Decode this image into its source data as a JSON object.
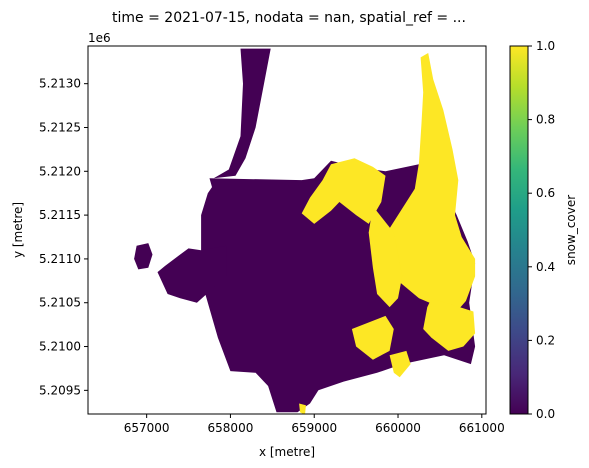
{
  "chart_data": {
    "type": "heatmap",
    "title": "time = 2021-07-15, nodata = nan, spatial_ref = ...",
    "xlabel": "x [metre]",
    "ylabel": "y [metre]",
    "y_offset_label": "1e6",
    "xlim": [
      656300,
      661050
    ],
    "ylim": [
      5.20923,
      5.21343
    ],
    "x_ticks": [
      {
        "value": 657000,
        "label": "657000"
      },
      {
        "value": 658000,
        "label": "658000"
      },
      {
        "value": 659000,
        "label": "659000"
      },
      {
        "value": 660000,
        "label": "660000"
      },
      {
        "value": 661000,
        "label": "661000"
      }
    ],
    "y_ticks": [
      {
        "value": 5.2095,
        "label": "5.2095"
      },
      {
        "value": 5.21,
        "label": "5.2100"
      },
      {
        "value": 5.2105,
        "label": "5.2105"
      },
      {
        "value": 5.211,
        "label": "5.2110"
      },
      {
        "value": 5.2115,
        "label": "5.2115"
      },
      {
        "value": 5.212,
        "label": "5.2120"
      },
      {
        "value": 5.2125,
        "label": "5.2125"
      },
      {
        "value": 5.213,
        "label": "5.2130"
      }
    ],
    "colorbar": {
      "label": "snow_cover",
      "min": 0.0,
      "max": 1.0,
      "ticks": [
        {
          "value": 0.0,
          "label": "0.0"
        },
        {
          "value": 0.2,
          "label": "0.2"
        },
        {
          "value": 0.4,
          "label": "0.4"
        },
        {
          "value": 0.6,
          "label": "0.6"
        },
        {
          "value": 0.8,
          "label": "0.8"
        },
        {
          "value": 1.0,
          "label": "1.0"
        }
      ],
      "colormap": "viridis"
    },
    "regions": [
      {
        "name": "no-snow (0.0)",
        "value": 0,
        "color": "#440154",
        "polygons": [
          [
            [
              658120,
              5.2134
            ],
            [
              658480,
              5.2134
            ],
            [
              658400,
              5.213
            ],
            [
              658300,
              5.2125
            ],
            [
              658180,
              5.21215
            ],
            [
              658060,
              5.21195
            ],
            [
              657800,
              5.21192
            ],
            [
              657980,
              5.21202
            ],
            [
              658120,
              5.2124
            ],
            [
              658150,
              5.213
            ]
          ],
          [
            [
              657750,
              5.21192
            ],
            [
              658850,
              5.2119
            ],
            [
              659000,
              5.21192
            ],
            [
              659200,
              5.21212
            ],
            [
              659500,
              5.21205
            ],
            [
              659850,
              5.212
            ],
            [
              660350,
              5.2121
            ],
            [
              660500,
              5.21192
            ],
            [
              660700,
              5.2115
            ],
            [
              660830,
              5.2112
            ],
            [
              660920,
              5.21095
            ],
            [
              660850,
              5.2105
            ],
            [
              660920,
              5.21
            ],
            [
              660870,
              5.2098
            ],
            [
              660550,
              5.2099
            ],
            [
              660050,
              5.2098
            ],
            [
              659750,
              5.2097
            ],
            [
              659350,
              5.2096
            ],
            [
              659050,
              5.2095
            ],
            [
              658950,
              5.20935
            ],
            [
              658800,
              5.20925
            ],
            [
              658550,
              5.20925
            ],
            [
              658450,
              5.20955
            ],
            [
              658300,
              5.2097
            ],
            [
              658000,
              5.20972
            ],
            [
              657850,
              5.2101
            ],
            [
              657700,
              5.2106
            ],
            [
              657650,
              5.211
            ],
            [
              657650,
              5.2115
            ],
            [
              657730,
              5.21175
            ],
            [
              657780,
              5.21182
            ]
          ],
          [
            [
              657650,
              5.2111
            ],
            [
              657950,
              5.21115
            ],
            [
              657950,
              5.2108
            ],
            [
              657600,
              5.2105
            ],
            [
              657400,
              5.21055
            ],
            [
              657250,
              5.2106
            ],
            [
              657130,
              5.21085
            ],
            [
              657220,
              5.21092
            ],
            [
              657400,
              5.21105
            ],
            [
              657500,
              5.21112
            ]
          ],
          [
            [
              656880,
              5.21115
            ],
            [
              657020,
              5.21118
            ],
            [
              657070,
              5.21105
            ],
            [
              657020,
              5.2109
            ],
            [
              656900,
              5.21088
            ],
            [
              656850,
              5.211
            ]
          ]
        ]
      },
      {
        "name": "snow (1.0)",
        "value": 1,
        "color": "#fde725",
        "polygons": [
          [
            [
              660270,
              5.2133
            ],
            [
              660360,
              5.21335
            ],
            [
              660420,
              5.21305
            ],
            [
              660540,
              5.2127
            ],
            [
              660650,
              5.21225
            ],
            [
              660720,
              5.2119
            ],
            [
              660680,
              5.2115
            ],
            [
              660760,
              5.21125
            ],
            [
              660920,
              5.211
            ],
            [
              660920,
              5.2108
            ],
            [
              660810,
              5.21052
            ],
            [
              660700,
              5.2104
            ],
            [
              660500,
              5.21045
            ],
            [
              660250,
              5.21055
            ],
            [
              660000,
              5.21075
            ],
            [
              659750,
              5.21085
            ],
            [
              659800,
              5.2112
            ],
            [
              660000,
              5.2115
            ],
            [
              660200,
              5.2118
            ],
            [
              660250,
              5.2121
            ],
            [
              660280,
              5.21255
            ],
            [
              660300,
              5.2129
            ]
          ],
          [
            [
              659200,
              5.21208
            ],
            [
              659480,
              5.21215
            ],
            [
              659700,
              5.21205
            ],
            [
              659850,
              5.21195
            ],
            [
              659800,
              5.21165
            ],
            [
              659650,
              5.2114
            ],
            [
              659500,
              5.2115
            ],
            [
              659300,
              5.21165
            ],
            [
              659200,
              5.21155
            ],
            [
              659000,
              5.2114
            ],
            [
              658850,
              5.21152
            ],
            [
              658950,
              5.2117
            ],
            [
              659100,
              5.2119
            ]
          ],
          [
            [
              659700,
              5.2116
            ],
            [
              659950,
              5.2113
            ],
            [
              660050,
              5.2108
            ],
            [
              660000,
              5.21055
            ],
            [
              659900,
              5.21045
            ],
            [
              659750,
              5.2106
            ],
            [
              659700,
              5.2109
            ],
            [
              659650,
              5.2113
            ]
          ],
          [
            [
              660400,
              5.21055
            ],
            [
              660900,
              5.2104
            ],
            [
              660920,
              5.21015
            ],
            [
              660780,
              5.21
            ],
            [
              660600,
              5.20995
            ],
            [
              660400,
              5.2101
            ],
            [
              660300,
              5.2102
            ],
            [
              660350,
              5.21045
            ]
          ],
          [
            [
              659450,
              5.2102
            ],
            [
              659850,
              5.21035
            ],
            [
              659950,
              5.2102
            ],
            [
              659900,
              5.20995
            ],
            [
              659700,
              5.20985
            ],
            [
              659500,
              5.21
            ]
          ],
          [
            [
              659900,
              5.2099
            ],
            [
              660100,
              5.20995
            ],
            [
              660150,
              5.2098
            ],
            [
              660020,
              5.20965
            ],
            [
              659950,
              5.2097
            ]
          ],
          [
            [
              658820,
              5.20935
            ],
            [
              658900,
              5.20933
            ],
            [
              658890,
              5.20922
            ],
            [
              658830,
              5.20925
            ]
          ]
        ]
      }
    ]
  }
}
